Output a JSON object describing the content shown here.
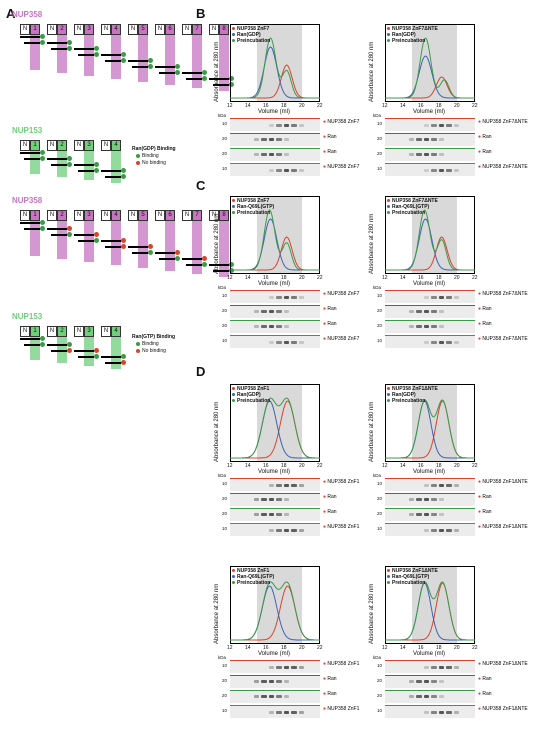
{
  "panel_labels": {
    "A": "A",
    "B": "B",
    "C": "C",
    "D": "D"
  },
  "panel_a": {
    "nup358_label": "NUP358",
    "nup153_label": "NUP153",
    "domains358": [
      "N",
      "1",
      "N",
      "2",
      "N",
      "3",
      "N",
      "4",
      "N",
      "5",
      "N",
      "6",
      "N",
      "7",
      "N",
      "8"
    ],
    "domains153": [
      "N",
      "1",
      "N",
      "2",
      "N",
      "3",
      "N",
      "4"
    ],
    "legend_gdp_title": "Ran(GDP) Binding",
    "legend_gtp_title": "Ran(GTP) Binding",
    "legend_binding": "Binding",
    "legend_nobinding": "No binding",
    "colors": {
      "nup358": "#c774c1",
      "nup153": "#6fcf7b",
      "binding": "#3d9a4a",
      "nobinding": "#d9442b"
    }
  },
  "charts": [
    {
      "id": "B1",
      "leg1": "NUP358 ZnF7",
      "leg2": "Ran(GDP)",
      "leg3": "Preincubation",
      "gel_labels": [
        "NUP358 ZnF7",
        "Ran",
        "Ran",
        "NUP358 ZnF7"
      ]
    },
    {
      "id": "B2",
      "leg1": "NUP358 ZnF7ΔNTE",
      "leg2": "Ran(GDP)",
      "leg3": "Preincubation",
      "gel_labels": [
        "NUP358 ZnF7ΔNTE",
        "Ran",
        "Ran",
        "NUP358 ZnF7ΔNTE"
      ]
    },
    {
      "id": "C1",
      "leg1": "NUP358 ZnF7",
      "leg2": "Ran-Q69L(GTP)",
      "leg3": "Preincubation",
      "gel_labels": [
        "NUP358 ZnF7",
        "Ran",
        "Ran",
        "NUP358 ZnF7"
      ]
    },
    {
      "id": "C2",
      "leg1": "NUP358 ZnF7ΔNTE",
      "leg2": "Ran-Q69L(GTP)",
      "leg3": "Preincubation",
      "gel_labels": [
        "NUP358 ZnF7ΔNTE",
        "Ran",
        "Ran",
        "NUP358 ZnF7ΔNTE"
      ]
    },
    {
      "id": "D1",
      "leg1": "NUP358 ZnF1",
      "leg2": "Ran(GDP)",
      "leg3": "Preincubation",
      "gel_labels": [
        "NUP358 ZnF1",
        "Ran",
        "Ran",
        "NUP358 ZnF1"
      ]
    },
    {
      "id": "D2",
      "leg1": "NUP358 ZnF1ΔNTE",
      "leg2": "Ran(GDP)",
      "leg3": "Preincubation",
      "gel_labels": [
        "NUP358 ZnF1ΔNTE",
        "Ran",
        "Ran",
        "NUP358 ZnF1ΔNTE"
      ]
    },
    {
      "id": "D3",
      "leg1": "NUP358 ZnF1",
      "leg2": "Ran-Q69L(GTP)",
      "leg3": "Preincubation",
      "gel_labels": [
        "NUP358 ZnF1",
        "Ran",
        "Ran",
        "NUP358 ZnF1"
      ]
    },
    {
      "id": "D4",
      "leg1": "NUP358 ZnF1ΔNTE",
      "leg2": "Ran-Q69L(GTP)",
      "leg3": "Preincubation",
      "gel_labels": [
        "NUP358 ZnF1ΔNTE",
        "Ran",
        "Ran",
        "NUP358 ZnF1ΔNTE"
      ]
    }
  ],
  "axis": {
    "ylabel": "Absorbance at 280 nm",
    "xlabel": "Volume (ml)",
    "kda": "kDa"
  },
  "chart_data": [
    {
      "type": "line",
      "title": "",
      "xlabel": "Volume (ml)",
      "ylabel": "Absorbance at 280 nm",
      "xticks": [
        12,
        14,
        16,
        18,
        20,
        22
      ],
      "xlim": [
        12,
        22
      ],
      "series": [
        {
          "name": "NUP358 ZnF7",
          "color": "#d9442b"
        },
        {
          "name": "Ran(GDP)",
          "color": "#3e63b5"
        },
        {
          "name": "Preincubation",
          "color": "#3d9a4a"
        }
      ]
    }
  ]
}
